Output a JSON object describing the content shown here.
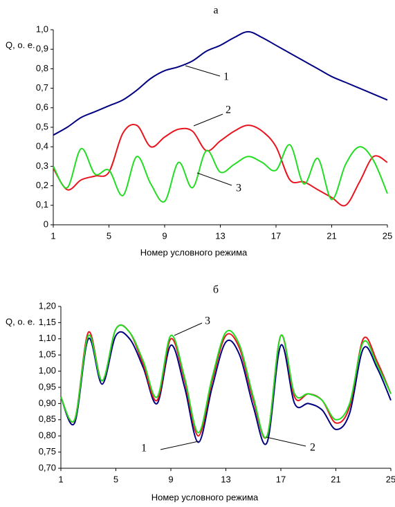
{
  "chart_data": [
    {
      "type": "line",
      "title": "а",
      "ylabel": "Q, о. е.",
      "xlabel": "Номер условного режима",
      "x": [
        1,
        2,
        3,
        4,
        5,
        6,
        7,
        8,
        9,
        10,
        11,
        12,
        13,
        14,
        15,
        16,
        17,
        18,
        19,
        20,
        21,
        22,
        23,
        24,
        25
      ],
      "xlim": [
        1,
        25
      ],
      "xticks": [
        1,
        5,
        9,
        13,
        17,
        21,
        25
      ],
      "ylim": [
        0,
        1.0
      ],
      "yticks": [
        0,
        {
          "value": 0.1,
          "label": "0,1"
        },
        {
          "value": 0.2,
          "label": "0,2"
        },
        {
          "value": 0.3,
          "label": "0,3"
        },
        {
          "value": 0.4,
          "label": "0,4"
        },
        {
          "value": 0.5,
          "label": "0,5"
        },
        {
          "value": 0.6,
          "label": "0,6"
        },
        {
          "value": 0.7,
          "label": "0,7"
        },
        {
          "value": 0.8,
          "label": "0,8"
        },
        {
          "value": 0.9,
          "label": "0,9"
        },
        {
          "value": 1.0,
          "label": "1,0"
        }
      ],
      "grid": false,
      "series": [
        {
          "color": "#000080",
          "values": [
            0.46,
            0.5,
            0.55,
            0.58,
            0.61,
            0.64,
            0.69,
            0.75,
            0.79,
            0.81,
            0.84,
            0.89,
            0.92,
            0.96,
            0.99,
            0.96,
            0.92,
            0.88,
            0.84,
            0.8,
            0.76,
            0.73,
            0.7,
            0.67,
            0.64
          ]
        },
        {
          "color": "#e8141e",
          "values": [
            0.29,
            0.18,
            0.23,
            0.25,
            0.27,
            0.47,
            0.51,
            0.4,
            0.45,
            0.49,
            0.48,
            0.38,
            0.43,
            0.48,
            0.51,
            0.48,
            0.4,
            0.23,
            0.22,
            0.18,
            0.14,
            0.1,
            0.22,
            0.35,
            0.32
          ]
        },
        {
          "color": "#22dd22",
          "values": [
            0.3,
            0.19,
            0.39,
            0.26,
            0.28,
            0.15,
            0.35,
            0.21,
            0.12,
            0.32,
            0.19,
            0.38,
            0.27,
            0.31,
            0.35,
            0.32,
            0.28,
            0.41,
            0.21,
            0.34,
            0.13,
            0.31,
            0.4,
            0.33,
            0.16
          ]
        }
      ],
      "annotations": [
        "1",
        "2",
        "3"
      ]
    },
    {
      "type": "line",
      "title": "б",
      "ylabel": "Q, о. е.",
      "xlabel": "Номер условного режима",
      "x": [
        1,
        2,
        3,
        4,
        5,
        6,
        7,
        8,
        9,
        10,
        11,
        12,
        13,
        14,
        15,
        16,
        17,
        18,
        19,
        20,
        21,
        22,
        23,
        24,
        25
      ],
      "xlim": [
        1,
        25
      ],
      "xticks": [
        1,
        5,
        9,
        13,
        17,
        21,
        25
      ],
      "ylim": [
        0.7,
        1.2
      ],
      "yticks": [
        {
          "value": 0.7,
          "label": "0,70"
        },
        {
          "value": 0.75,
          "label": "0,75"
        },
        {
          "value": 0.8,
          "label": "0,80"
        },
        {
          "value": 0.85,
          "label": "0,85"
        },
        {
          "value": 0.9,
          "label": "0,90"
        },
        {
          "value": 0.95,
          "label": "0,95"
        },
        {
          "value": 1.0,
          "label": "1,00"
        },
        {
          "value": 1.05,
          "label": "1,05"
        },
        {
          "value": 1.1,
          "label": "1,10"
        },
        {
          "value": 1.15,
          "label": "1,15"
        },
        {
          "value": 1.2,
          "label": "1,20"
        }
      ],
      "grid": false,
      "series": [
        {
          "color": "#000080",
          "values": [
            0.92,
            0.84,
            1.1,
            0.96,
            1.11,
            1.1,
            1.01,
            0.9,
            1.08,
            0.95,
            0.78,
            0.95,
            1.09,
            1.05,
            0.89,
            0.78,
            1.08,
            0.9,
            0.9,
            0.88,
            0.82,
            0.87,
            1.07,
            1.01,
            0.91
          ]
        },
        {
          "color": "#e8141e",
          "values": [
            0.92,
            0.85,
            1.12,
            0.97,
            1.13,
            1.12,
            1.02,
            0.91,
            1.1,
            0.97,
            0.8,
            0.97,
            1.11,
            1.07,
            0.91,
            0.8,
            1.11,
            0.92,
            0.93,
            0.91,
            0.84,
            0.89,
            1.1,
            1.03,
            0.93
          ]
        },
        {
          "color": "#22dd22",
          "values": [
            0.92,
            0.85,
            1.11,
            0.97,
            1.13,
            1.12,
            1.03,
            0.92,
            1.11,
            0.98,
            0.81,
            0.98,
            1.12,
            1.08,
            0.92,
            0.8,
            1.11,
            0.93,
            0.93,
            0.91,
            0.85,
            0.9,
            1.09,
            1.02,
            0.93
          ]
        }
      ],
      "annotations": [
        "3",
        "1",
        "2"
      ]
    }
  ]
}
